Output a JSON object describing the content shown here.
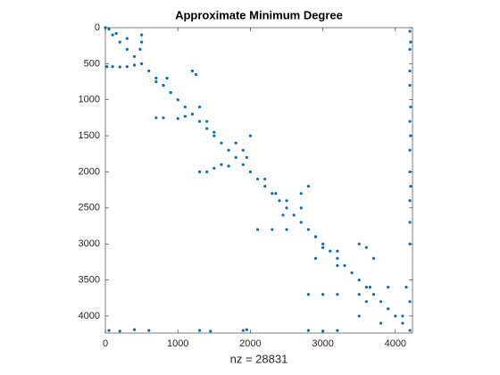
{
  "chart_data": {
    "type": "scatter",
    "title": "Approximate Minimum Degree",
    "x_label": "nz = 28831",
    "color": "#0072BD",
    "xlim": [
      0,
      4236
    ],
    "ylim": [
      0,
      4236
    ],
    "y_reversed": true,
    "xticks": [
      0,
      1000,
      2000,
      3000,
      4000
    ],
    "yticks": [
      0,
      500,
      1000,
      1500,
      2000,
      2500,
      3000,
      3500,
      4000
    ],
    "x": [
      0,
      100,
      200,
      300,
      400,
      500,
      600,
      700,
      800,
      900,
      1000,
      1100,
      1200,
      1300,
      1400,
      1500,
      1600,
      1700,
      1800,
      1900,
      2000,
      2100,
      2200,
      2300,
      2400,
      2500,
      2600,
      2700,
      2800,
      2900,
      3000,
      3100,
      3200,
      3300,
      3400,
      3500,
      3600,
      3700,
      3800,
      3900,
      4000,
      4100,
      4200,
      50,
      150,
      300,
      500,
      500,
      480,
      20,
      100,
      200,
      300,
      400,
      700,
      800,
      850,
      900,
      1200,
      1250,
      700,
      800,
      1000,
      1100,
      1300,
      1400,
      1500,
      1800,
      1900,
      1950,
      2000,
      1500,
      1600,
      1700,
      1300,
      1400,
      2200,
      2350,
      2500,
      2450,
      2800,
      2700,
      2700,
      2300,
      2500,
      2100,
      2900,
      3000,
      3200,
      2900,
      3200,
      3500,
      3600,
      3700,
      3650,
      2800,
      3000,
      3200,
      3500,
      3600,
      3900,
      4150,
      4200,
      4100,
      3800,
      3500,
      50,
      200,
      400,
      600,
      1300,
      1450,
      1900,
      1950,
      2800,
      3000,
      3200,
      4200,
      4210,
      4200,
      4200,
      4200,
      4210,
      4200,
      4210,
      4200,
      4200,
      4210,
      4200,
      4200,
      4200
    ],
    "y": [
      0,
      100,
      200,
      300,
      400,
      500,
      600,
      700,
      800,
      900,
      1000,
      1100,
      1200,
      1300,
      1400,
      1500,
      1600,
      1700,
      1800,
      1900,
      2000,
      2100,
      2200,
      2300,
      2400,
      2500,
      2600,
      2700,
      2800,
      2900,
      3000,
      3100,
      3200,
      3300,
      3400,
      3500,
      3600,
      3700,
      3800,
      3900,
      4000,
      4100,
      4200,
      20,
      80,
      150,
      100,
      200,
      300,
      540,
      540,
      545,
      540,
      520,
      750,
      800,
      700,
      900,
      600,
      650,
      1250,
      1250,
      1260,
      1230,
      1100,
      1300,
      1450,
      1600,
      1700,
      1800,
      1500,
      1950,
      1900,
      1920,
      2000,
      2000,
      2100,
      2300,
      2400,
      2600,
      2200,
      2300,
      2500,
      2800,
      2800,
      2800,
      2900,
      3050,
      3100,
      3200,
      3300,
      3000,
      3050,
      3200,
      3600,
      3700,
      3700,
      3700,
      3700,
      3800,
      3600,
      3600,
      3800,
      4000,
      4100,
      4000,
      4200,
      4210,
      4190,
      4200,
      4200,
      4210,
      4200,
      4190,
      4200,
      4210,
      4200,
      50,
      200,
      300,
      600,
      800,
      1100,
      1300,
      1500,
      1700,
      2000,
      2200,
      2400,
      2700,
      3000
    ]
  }
}
